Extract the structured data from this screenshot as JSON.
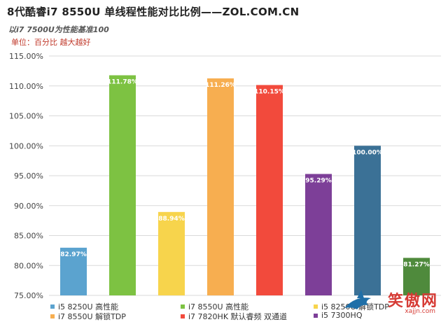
{
  "header": {
    "title": "8代酷睿i7 8550U 单线程性能对比比例——ZOL.COM.CN",
    "subtitle": "以i7 7500U为性能基准100",
    "unit": "单位：百分比 越大越好"
  },
  "chart_data": {
    "type": "bar",
    "title": "8代酷睿i7 8550U 单线程性能对比比例——ZOL.COM.CN",
    "subtitle": "以i7 7500U为性能基准100",
    "ylim": [
      75,
      115
    ],
    "yticks": [
      "115.00%",
      "110.00%",
      "105.00%",
      "100.00%",
      "95.00%",
      "90.00%",
      "85.00%",
      "80.00%",
      "75.00%"
    ],
    "ytick_values": [
      115,
      110,
      105,
      100,
      95,
      90,
      85,
      80,
      75
    ],
    "grid": true,
    "legend_position": "bottom",
    "series": [
      {
        "name": "i5 8250U 高性能",
        "value": 82.97,
        "label": "82.97%",
        "color": "#5ba3cf"
      },
      {
        "name": "i7 8550U 高性能",
        "value": 111.78,
        "label": "111.78%",
        "color": "#7dc242"
      },
      {
        "name": "i5 8250U 解锁TDP",
        "value": 88.94,
        "label": "88.94%",
        "color": "#f7d44c"
      },
      {
        "name": "i7 8550U 解锁TDP",
        "value": 111.26,
        "label": "111.26%",
        "color": "#f7ae50"
      },
      {
        "name": "i7 7820HK 默认睿频 双通道",
        "value": 110.15,
        "label": "110.15%",
        "color": "#f24a3c"
      },
      {
        "name": "i5 7300HQ",
        "value": 95.29,
        "label": "95.29%",
        "color": "#7d3f98"
      },
      {
        "name": "",
        "value": 100.0,
        "label": "100.00%",
        "color": "#3b7196"
      },
      {
        "name": "",
        "value": 81.27,
        "label": "81.27%",
        "color": "#4f8a3c"
      }
    ]
  },
  "legend": [
    {
      "label": "i5 8250U 高性能",
      "color": "#5ba3cf"
    },
    {
      "label": "i7 8550U 高性能",
      "color": "#7dc242"
    },
    {
      "label": "i5 8250U 解锁TDP",
      "color": "#f7d44c"
    },
    {
      "label": "i7 8550U 解锁TDP",
      "color": "#f7ae50"
    },
    {
      "label": "i7 7820HK 默认睿频 双通道",
      "color": "#f24a3c"
    },
    {
      "label": "i5 7300HQ",
      "color": "#7d3f98"
    }
  ],
  "watermark": {
    "text": "笑傲网",
    "url": "xajjn.com",
    "color": "#d63b35"
  }
}
